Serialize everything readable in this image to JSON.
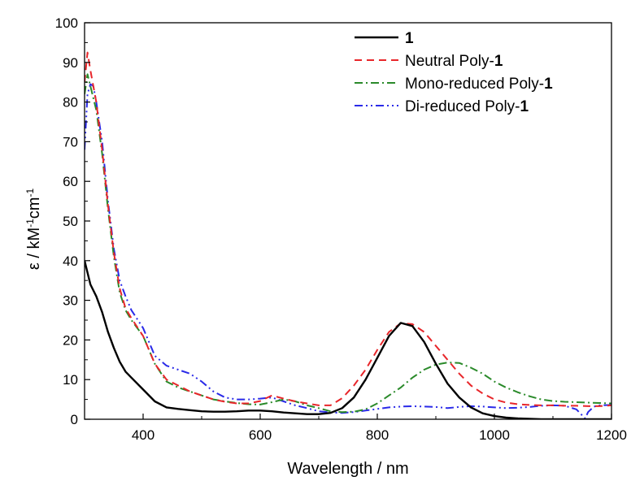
{
  "chart_data": {
    "type": "line",
    "xlabel": "Wavelength / nm",
    "ylabel_parts": [
      "ε / kM",
      "-1",
      "cm",
      "-1"
    ],
    "xlim": [
      300,
      1200
    ],
    "ylim": [
      0,
      100
    ],
    "x_ticks": [
      400,
      600,
      800,
      1000,
      1200
    ],
    "y_ticks": [
      0,
      10,
      20,
      30,
      40,
      50,
      60,
      70,
      80,
      90,
      100
    ],
    "grid": false,
    "legend_position": "top-right",
    "series": [
      {
        "label_prefix": "",
        "label_bold": "1",
        "color": "#000000",
        "dash": "",
        "x": [
          300,
          310,
          320,
          330,
          340,
          350,
          360,
          370,
          380,
          400,
          420,
          440,
          460,
          480,
          500,
          520,
          540,
          560,
          580,
          600,
          620,
          640,
          660,
          680,
          700,
          720,
          740,
          760,
          780,
          800,
          820,
          840,
          860,
          880,
          900,
          920,
          940,
          960,
          980,
          1000,
          1020,
          1040,
          1060,
          1080,
          1100,
          1200
        ],
        "y": [
          40,
          34,
          31,
          27,
          22,
          18,
          14.5,
          12,
          10.5,
          7.5,
          4.5,
          3,
          2.6,
          2.3,
          2.0,
          1.9,
          1.9,
          2.0,
          2.2,
          2.2,
          2.0,
          1.7,
          1.5,
          1.3,
          1.3,
          1.6,
          2.8,
          5.5,
          10,
          15.5,
          21,
          24.3,
          23.5,
          19.5,
          14,
          9,
          5.5,
          3,
          1.5,
          0.8,
          0.4,
          0.2,
          0.1,
          0,
          0,
          0
        ]
      },
      {
        "label_prefix": "Neutral Poly-",
        "label_bold": "1",
        "color": "#e8262a",
        "dash": "9 6",
        "x": [
          300,
          305,
          310,
          320,
          330,
          340,
          350,
          360,
          370,
          380,
          400,
          420,
          440,
          460,
          480,
          500,
          520,
          540,
          560,
          580,
          600,
          620,
          640,
          660,
          680,
          700,
          720,
          740,
          760,
          780,
          800,
          820,
          840,
          860,
          880,
          900,
          920,
          940,
          960,
          980,
          1000,
          1020,
          1040,
          1060,
          1080,
          1100,
          1120,
          1140,
          1160,
          1180,
          1200
        ],
        "y": [
          85,
          92.5,
          88,
          80,
          68,
          54,
          42,
          33,
          28,
          25.5,
          21,
          14,
          10,
          8.5,
          7,
          6,
          5,
          4.4,
          4,
          4,
          4.6,
          6,
          5.2,
          4.5,
          4,
          3.5,
          3.5,
          5.3,
          8.5,
          12.5,
          17.5,
          22,
          24.2,
          24,
          22,
          18.5,
          15,
          11.5,
          8.5,
          6.5,
          5,
          4.2,
          3.8,
          3.6,
          3.5,
          3.5,
          3.4,
          3.4,
          3.3,
          3.3,
          3.5
        ]
      },
      {
        "label_prefix": "Mono-reduced Poly-",
        "label_bold": "1",
        "color": "#2a8a2a",
        "dash": "10 4 2 4",
        "x": [
          300,
          305,
          310,
          320,
          330,
          340,
          350,
          360,
          370,
          380,
          400,
          420,
          440,
          460,
          480,
          500,
          520,
          540,
          560,
          580,
          600,
          620,
          640,
          660,
          680,
          700,
          720,
          740,
          760,
          780,
          800,
          820,
          840,
          860,
          880,
          900,
          920,
          940,
          960,
          980,
          1000,
          1020,
          1040,
          1060,
          1080,
          1100,
          1120,
          1140,
          1160,
          1180,
          1200
        ],
        "y": [
          82,
          87,
          84,
          78,
          67,
          53,
          41,
          32,
          27.5,
          25,
          21,
          14,
          9.5,
          8,
          7,
          6,
          5,
          4.5,
          4.1,
          3.8,
          3.7,
          4.3,
          5,
          4.5,
          3.5,
          2.8,
          2,
          1.8,
          1.9,
          2.5,
          4,
          6,
          8,
          10.5,
          12.5,
          13.8,
          14.3,
          14.2,
          13,
          11.5,
          9.5,
          8,
          6.8,
          5.8,
          5,
          4.6,
          4.4,
          4.3,
          4.2,
          4.1,
          4.0
        ]
      },
      {
        "label_prefix": "Di-reduced Poly-",
        "label_bold": "1",
        "color": "#2a2ae8",
        "dash": "10 4 2 4 2 4",
        "x": [
          300,
          305,
          310,
          315,
          320,
          330,
          340,
          350,
          360,
          370,
          380,
          400,
          420,
          440,
          460,
          480,
          500,
          520,
          540,
          560,
          580,
          600,
          620,
          640,
          660,
          680,
          700,
          720,
          740,
          760,
          780,
          800,
          820,
          840,
          860,
          880,
          900,
          920,
          940,
          960,
          980,
          1000,
          1020,
          1040,
          1060,
          1080,
          1100,
          1120,
          1140,
          1155,
          1160,
          1170,
          1180,
          1200
        ],
        "y": [
          68,
          82,
          84.5,
          84,
          80,
          70,
          55,
          43,
          35,
          31,
          27.5,
          23,
          16,
          13.5,
          12.5,
          11.5,
          9.5,
          7,
          5.5,
          5,
          5,
          5.2,
          5.5,
          4.5,
          3.5,
          2.8,
          2,
          1.7,
          1.6,
          1.8,
          2.2,
          2.6,
          3,
          3.2,
          3.3,
          3.2,
          3.1,
          2.8,
          3.1,
          3.3,
          3.2,
          3,
          2.8,
          2.9,
          3.1,
          3.4,
          3.5,
          3.4,
          2.5,
          0.2,
          1.8,
          3.2,
          3.5,
          3.6
        ]
      }
    ]
  }
}
